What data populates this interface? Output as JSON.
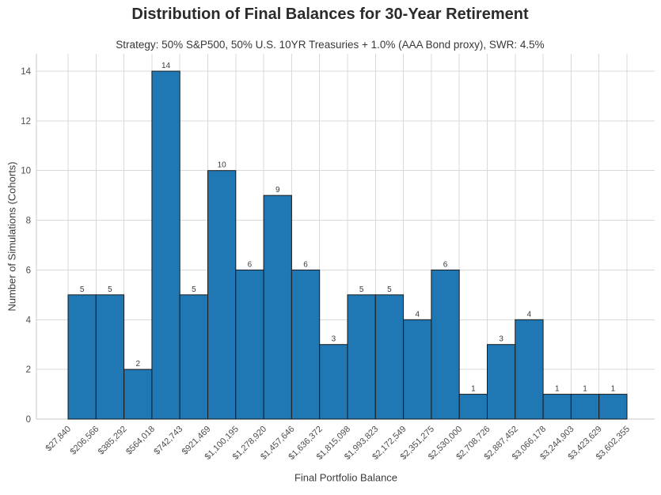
{
  "chart_data": {
    "type": "bar",
    "title": "Distribution of Final Balances for 30-Year Retirement",
    "subtitle": "Strategy: 50% S&P500, 50% U.S. 10YR Treasuries + 1.0% (AAA Bond proxy), SWR: 4.5%",
    "xlabel": "Final Portfolio Balance",
    "ylabel": "Number of Simulations (Cohorts)",
    "bin_edge_labels": [
      "$27,840",
      "$206,566",
      "$385,292",
      "$564,018",
      "$742,743",
      "$921,469",
      "$1,100,195",
      "$1,278,920",
      "$1,457,646",
      "$1,636,372",
      "$1,815,098",
      "$1,993,823",
      "$2,172,549",
      "$2,351,275",
      "$2,530,000",
      "$2,708,726",
      "$2,887,452",
      "$3,066,178",
      "$3,244,903",
      "$3,423,629",
      "$3,602,355"
    ],
    "values": [
      5,
      5,
      2,
      14,
      5,
      10,
      6,
      9,
      6,
      3,
      5,
      5,
      4,
      6,
      1,
      3,
      4,
      1,
      1,
      1
    ],
    "yticks": [
      0,
      2,
      4,
      6,
      8,
      10,
      12,
      14
    ],
    "ylim": [
      0,
      14.7
    ],
    "grid": true,
    "legend_position": "none",
    "colors": {
      "bar_fill": "#1f77b4",
      "bar_edge": "#1a1a1a",
      "grid": "#d9d9d9",
      "spine": "#c9c9c9",
      "tick_text": "#4d4d4d",
      "bar_label_text": "#3a3a3a"
    }
  }
}
